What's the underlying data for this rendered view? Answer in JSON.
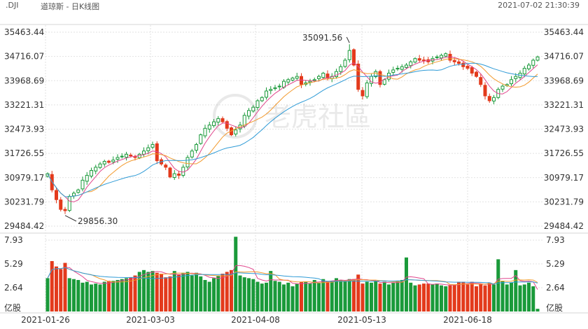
{
  "header": {
    "symbol": ".DJI",
    "title": "道琼斯 - 日K线图",
    "timestamp": "2021-07-02 21:30:39"
  },
  "watermark": "老虎社區",
  "colors": {
    "up": "#1a9a3a",
    "down": "#e33a1c",
    "ma_pink": "#e0468c",
    "ma_orange": "#f29a2e",
    "ma_blue": "#2f9bd6",
    "grid": "#e2e2e2"
  },
  "chart_data": [
    {
      "type": "candlestick",
      "title": "",
      "y_ticks": [
        "35463.44",
        "34716.07",
        "33968.69",
        "33221.31",
        "32473.93",
        "31726.55",
        "30979.17",
        "30231.79",
        "29484.42"
      ],
      "y_range": [
        29484.42,
        35463.44
      ],
      "x_ticks": [
        "2021-01-26",
        "2021-03-03",
        "2021-04-08",
        "2021-05-13",
        "2021-06-18"
      ],
      "annotations": {
        "high": "35091.56",
        "low": "29856.30"
      },
      "close": [
        31100,
        30600,
        30300,
        30000,
        29960,
        30400,
        30500,
        30600,
        30900,
        31050,
        31200,
        31300,
        31400,
        31480,
        31450,
        31520,
        31600,
        31640,
        31700,
        31650,
        31600,
        31700,
        31800,
        31900,
        32000,
        31500,
        31400,
        31300,
        31000,
        31100,
        31050,
        31300,
        31600,
        31800,
        32000,
        32300,
        32500,
        32600,
        32700,
        32800,
        32700,
        32500,
        32300,
        32450,
        32600,
        32900,
        33050,
        33150,
        33350,
        33450,
        33650,
        33700,
        33750,
        33800,
        33950,
        34000,
        34050,
        34100,
        33850,
        33900,
        33950,
        34000,
        34100,
        34200,
        34050,
        34100,
        34250,
        34400,
        34600,
        34900,
        34450,
        33700,
        33500,
        33900,
        34100,
        34250,
        33850,
        34000,
        34200,
        34300,
        34350,
        34400,
        34450,
        34550,
        34650,
        34600,
        34600,
        34550,
        34650,
        34700,
        34750,
        34800,
        34600,
        34550,
        34500,
        34400,
        34350,
        34200,
        34100,
        33850,
        33500,
        33350,
        33450,
        33700,
        33800,
        33850,
        34000,
        34100,
        34200,
        34350,
        34450,
        34600,
        34700
      ],
      "volume": [
        3.7,
        5.6,
        5.0,
        4.7,
        5.4,
        3.7,
        3.6,
        3.5,
        3.2,
        3.3,
        3.0,
        3.1,
        3.0,
        3.3,
        3.4,
        3.4,
        3.5,
        3.6,
        3.7,
        3.8,
        4.0,
        4.4,
        4.6,
        4.4,
        4.5,
        4.3,
        4.2,
        3.8,
        3.9,
        4.5,
        4.1,
        4.3,
        4.4,
        4.0,
        4.3,
        3.9,
        3.5,
        3.3,
        3.7,
        4.0,
        4.2,
        4.4,
        4.6,
        8.3,
        4.0,
        3.8,
        3.7,
        3.6,
        3.3,
        3.1,
        3.2,
        4.5,
        3.4,
        3.3,
        3.0,
        3.2,
        2.8,
        3.1,
        3.3,
        3.3,
        3.1,
        3.5,
        3.2,
        3.6,
        3.3,
        3.4,
        3.7,
        3.5,
        3.4,
        3.6,
        3.6,
        4.1,
        3.1,
        3.3,
        3.2,
        3.4,
        3.1,
        3.3,
        3.0,
        3.2,
        3.4,
        3.5,
        6.0,
        3.2,
        2.9,
        3.0,
        3.1,
        3.1,
        3.0,
        3.1,
        2.9,
        2.8,
        2.9,
        3.0,
        3.3,
        3.3,
        3.0,
        3.3,
        2.8,
        3.1,
        2.9,
        3.2,
        3.0,
        5.8,
        3.4,
        3.0,
        3.2,
        4.6,
        2.9,
        3.0,
        3.2,
        2.8,
        0.3
      ],
      "volume_y_ticks": [
        "7.93",
        "5.29",
        "2.64"
      ],
      "volume_unit": "亿股"
    }
  ]
}
